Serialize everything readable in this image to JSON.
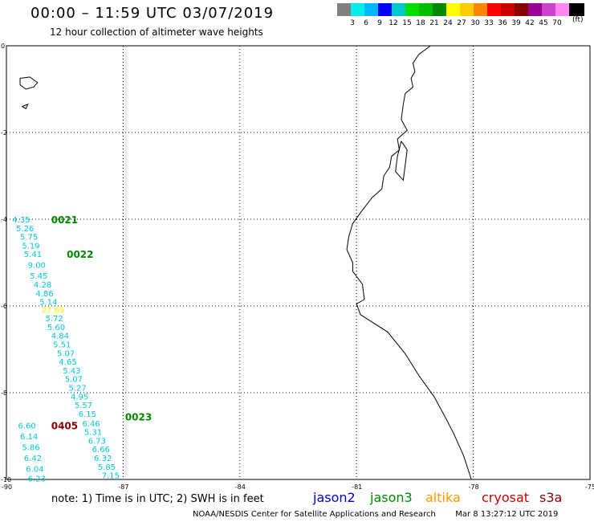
{
  "header": {
    "title": "00:00 – 11:59 UTC 03/07/2019",
    "subtitle": "12 hour collection of altimeter wave heights"
  },
  "legend": {
    "unit": "(ft)",
    "bins": [
      {
        "label": "",
        "color": "#808080"
      },
      {
        "label": "3",
        "color": "#00eeee"
      },
      {
        "label": "6",
        "color": "#00b8ff"
      },
      {
        "label": "9",
        "color": "#0000ff"
      },
      {
        "label": "12",
        "color": "#00c8c8"
      },
      {
        "label": "15",
        "color": "#00dd00"
      },
      {
        "label": "18",
        "color": "#00bb00"
      },
      {
        "label": "21",
        "color": "#008800"
      },
      {
        "label": "24",
        "color": "#ffff00"
      },
      {
        "label": "27",
        "color": "#ffcc00"
      },
      {
        "label": "30",
        "color": "#ff8800"
      },
      {
        "label": "33",
        "color": "#ff0000"
      },
      {
        "label": "36",
        "color": "#cc0000"
      },
      {
        "label": "39",
        "color": "#880000"
      },
      {
        "label": "42",
        "color": "#990099"
      },
      {
        "label": "45",
        "color": "#cc44cc"
      },
      {
        "label": "70",
        "color": "#ff88ee"
      },
      {
        "label": "",
        "color": "#000000"
      }
    ]
  },
  "map": {
    "lon_range": [
      -90,
      -75
    ],
    "lat_range": [
      -10,
      0
    ],
    "x_ticks": [
      "-90",
      "-87",
      "-84",
      "-81",
      "-78",
      "-75"
    ],
    "y_ticks": [
      "0",
      "-2",
      "-4",
      "-6",
      "-8",
      "-10"
    ]
  },
  "pass_labels": [
    {
      "text": "0021",
      "lon": -88.85,
      "lat": -4.0,
      "color": "#008800"
    },
    {
      "text": "0022",
      "lon": -88.45,
      "lat": -4.8,
      "color": "#008800"
    },
    {
      "text": "0023",
      "lon": -86.95,
      "lat": -8.55,
      "color": "#008800"
    },
    {
      "text": "0405",
      "lon": -88.85,
      "lat": -8.75,
      "color": "#880000"
    }
  ],
  "swh_points": [
    {
      "text": "4.35",
      "lon": -89.85,
      "lat": -4.0,
      "color": "#00c8d8"
    },
    {
      "text": "5.26",
      "lon": -89.75,
      "lat": -4.2,
      "color": "#00c8d8"
    },
    {
      "text": "5.75",
      "lon": -89.65,
      "lat": -4.4,
      "color": "#00c8d8"
    },
    {
      "text": "5.19",
      "lon": -89.6,
      "lat": -4.6,
      "color": "#00c8d8"
    },
    {
      "text": "5.41",
      "lon": -89.55,
      "lat": -4.8,
      "color": "#00c8d8"
    },
    {
      "text": "9.00",
      "lon": -89.45,
      "lat": -5.05,
      "color": "#00c8d8"
    },
    {
      "text": "5.45",
      "lon": -89.4,
      "lat": -5.3,
      "color": "#00c8d8"
    },
    {
      "text": "4.28",
      "lon": -89.3,
      "lat": -5.5,
      "color": "#00c8d8"
    },
    {
      "text": "4.86",
      "lon": -89.25,
      "lat": -5.7,
      "color": "#00c8d8"
    },
    {
      "text": "5.14",
      "lon": -89.15,
      "lat": -5.9,
      "color": "#00c8d8"
    },
    {
      "text": "27.69",
      "lon": -89.1,
      "lat": -6.08,
      "color": "#ffee00"
    },
    {
      "text": "5.72",
      "lon": -89.0,
      "lat": -6.28,
      "color": "#00c8d8"
    },
    {
      "text": "5.60",
      "lon": -88.95,
      "lat": -6.48,
      "color": "#00c8d8"
    },
    {
      "text": "4.84",
      "lon": -88.85,
      "lat": -6.68,
      "color": "#00c8d8"
    },
    {
      "text": "5.51",
      "lon": -88.8,
      "lat": -6.88,
      "color": "#00c8d8"
    },
    {
      "text": "5.07",
      "lon": -88.7,
      "lat": -7.08,
      "color": "#00c8d8"
    },
    {
      "text": "4.65",
      "lon": -88.65,
      "lat": -7.28,
      "color": "#00c8d8"
    },
    {
      "text": "5.43",
      "lon": -88.55,
      "lat": -7.48,
      "color": "#00c8d8"
    },
    {
      "text": "5.07",
      "lon": -88.5,
      "lat": -7.68,
      "color": "#00c8d8"
    },
    {
      "text": "5.27",
      "lon": -88.4,
      "lat": -7.88,
      "color": "#00c8d8"
    },
    {
      "text": "4.95",
      "lon": -88.35,
      "lat": -8.08,
      "color": "#00c8d8"
    },
    {
      "text": "5.57",
      "lon": -88.25,
      "lat": -8.28,
      "color": "#00c8d8"
    },
    {
      "text": "6.15",
      "lon": -88.15,
      "lat": -8.48,
      "color": "#00c8d8"
    },
    {
      "text": "6.46",
      "lon": -88.05,
      "lat": -8.7,
      "color": "#00c8d8"
    },
    {
      "text": "5.31",
      "lon": -88.0,
      "lat": -8.9,
      "color": "#00c8d8"
    },
    {
      "text": "6.73",
      "lon": -87.9,
      "lat": -9.1,
      "color": "#00c8d8"
    },
    {
      "text": "6.66",
      "lon": -87.8,
      "lat": -9.3,
      "color": "#00c8d8"
    },
    {
      "text": "6.32",
      "lon": -87.75,
      "lat": -9.5,
      "color": "#00c8d8"
    },
    {
      "text": "5.85",
      "lon": -87.65,
      "lat": -9.7,
      "color": "#00c8d8"
    },
    {
      "text": "7.15",
      "lon": -87.55,
      "lat": -9.9,
      "color": "#00c8d8"
    },
    {
      "text": "6.60",
      "lon": -89.7,
      "lat": -8.75,
      "color": "#00c8d8"
    },
    {
      "text": "6.14",
      "lon": -89.65,
      "lat": -9.0,
      "color": "#00c8d8"
    },
    {
      "text": "5.86",
      "lon": -89.6,
      "lat": -9.25,
      "color": "#00c8d8"
    },
    {
      "text": "6.42",
      "lon": -89.55,
      "lat": -9.5,
      "color": "#00c8d8"
    },
    {
      "text": "6.04",
      "lon": -89.5,
      "lat": -9.75,
      "color": "#00c8d8"
    },
    {
      "text": "6.23",
      "lon": -89.45,
      "lat": -9.97,
      "color": "#00c8d8"
    }
  ],
  "coastline": [
    [
      -79.1,
      0.0
    ],
    [
      -79.4,
      -0.2
    ],
    [
      -79.55,
      -0.4
    ],
    [
      -79.5,
      -0.6
    ],
    [
      -79.6,
      -0.75
    ],
    [
      -79.55,
      -0.95
    ],
    [
      -79.75,
      -1.1
    ],
    [
      -79.8,
      -1.35
    ],
    [
      -79.85,
      -1.7
    ],
    [
      -79.7,
      -1.95
    ],
    [
      -79.95,
      -2.15
    ],
    [
      -79.9,
      -2.4
    ],
    [
      -80.1,
      -2.55
    ],
    [
      -80.15,
      -2.8
    ],
    [
      -80.3,
      -3.0
    ],
    [
      -80.35,
      -3.3
    ],
    [
      -80.6,
      -3.5
    ],
    [
      -80.9,
      -3.85
    ],
    [
      -81.1,
      -4.1
    ],
    [
      -81.2,
      -4.4
    ],
    [
      -81.25,
      -4.7
    ],
    [
      -81.1,
      -5.0
    ],
    [
      -81.1,
      -5.2
    ],
    [
      -80.85,
      -5.5
    ],
    [
      -80.8,
      -5.85
    ],
    [
      -81.0,
      -5.95
    ],
    [
      -80.9,
      -6.2
    ],
    [
      -80.2,
      -6.6
    ],
    [
      -79.75,
      -7.1
    ],
    [
      -79.4,
      -7.6
    ],
    [
      -79.0,
      -8.1
    ],
    [
      -78.7,
      -8.6
    ],
    [
      -78.5,
      -8.95
    ],
    [
      -78.25,
      -9.45
    ],
    [
      -78.05,
      -10.0
    ]
  ],
  "gulf_outline": [
    [
      -79.85,
      -2.2
    ],
    [
      -79.95,
      -2.55
    ],
    [
      -80.0,
      -2.9
    ],
    [
      -79.8,
      -3.1
    ],
    [
      -79.75,
      -2.75
    ],
    [
      -79.7,
      -2.4
    ],
    [
      -79.85,
      -2.2
    ]
  ],
  "islands": [
    [
      [
        -89.65,
        -0.75
      ],
      [
        -89.4,
        -0.72
      ],
      [
        -89.2,
        -0.85
      ],
      [
        -89.3,
        -0.95
      ],
      [
        -89.5,
        -1.0
      ],
      [
        -89.65,
        -0.9
      ],
      [
        -89.65,
        -0.75
      ]
    ],
    [
      [
        -89.6,
        -1.4
      ],
      [
        -89.45,
        -1.35
      ],
      [
        -89.5,
        -1.45
      ],
      [
        -89.6,
        -1.4
      ]
    ]
  ],
  "note": "note: 1) Time is in UTC; 2) SWH is in feet",
  "satellites": [
    {
      "name": "jason2",
      "color": "#0000cc"
    },
    {
      "name": "jason3",
      "color": "#008800"
    },
    {
      "name": "altika",
      "color": "#ff9900"
    },
    {
      "name": "cryosat",
      "color": "#cc0000"
    },
    {
      "name": "s3a",
      "color": "#880000"
    }
  ],
  "footer": {
    "credit": "NOAA/NESDIS Center for Satellite Applications and Research",
    "timestamp": "Mar  8 13:27:12 UTC 2019"
  }
}
